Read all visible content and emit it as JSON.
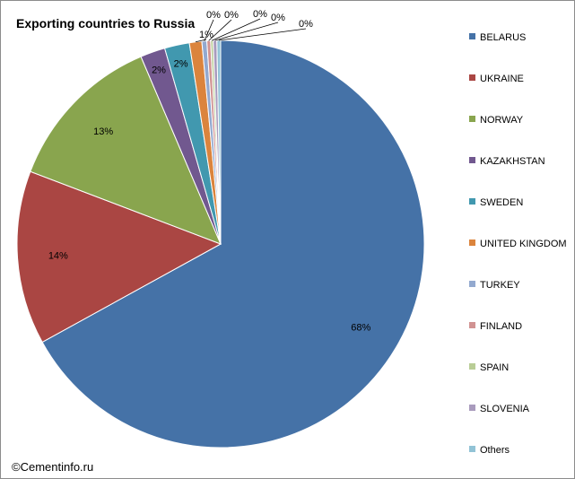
{
  "chart_data": {
    "type": "pie",
    "title": "Exporting countries to Russia",
    "categories": [
      "BELARUS",
      "UKRAINE",
      "NORWAY",
      "KAZAKHSTAN",
      "SWEDEN",
      "UNITED KINGDOM",
      "TURKEY",
      "FINLAND",
      "SPAIN",
      "SLOVENIA",
      "Others"
    ],
    "values": [
      68,
      14,
      13,
      2,
      2,
      1,
      0.4,
      0.3,
      0.2,
      0.3,
      0.3
    ],
    "data_labels": [
      "68%",
      "14%",
      "13%",
      "2%",
      "2%",
      "1%",
      "0%",
      "0%",
      "0%",
      "0%",
      "0%"
    ],
    "colors": [
      "#4572a7",
      "#aa4643",
      "#89a54e",
      "#71588f",
      "#4198af",
      "#db843d",
      "#93a9cf",
      "#d19392",
      "#b9cd96",
      "#a99bbd",
      "#92c3d6"
    ],
    "legend_position": "right"
  },
  "credit": "©Cementinfo.ru"
}
